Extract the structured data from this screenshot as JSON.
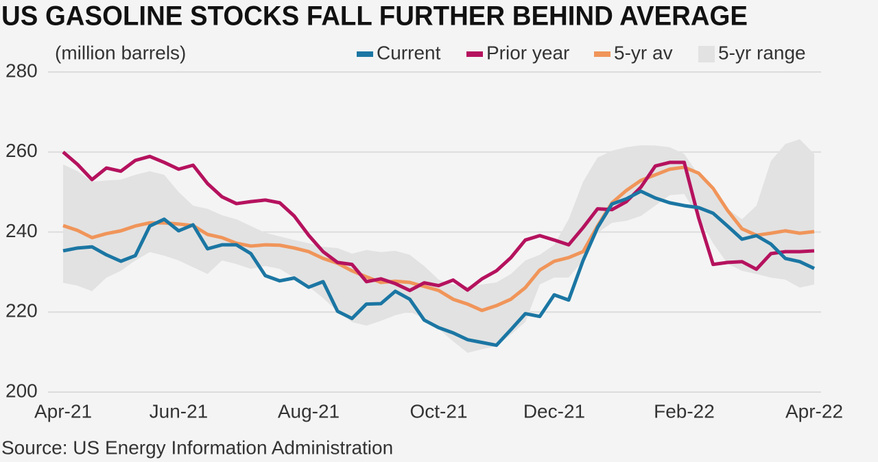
{
  "chart_data": {
    "type": "line",
    "title": "US GASOLINE STOCKS FALL FURTHER BEHIND AVERAGE",
    "y_label": "(million barrels)",
    "source": "Source: US Energy Information Administration",
    "categories": [
      "Apr-21",
      null,
      null,
      null,
      null,
      null,
      null,
      null,
      "Jun-21",
      null,
      null,
      null,
      null,
      null,
      null,
      null,
      null,
      "Aug-21",
      null,
      null,
      null,
      null,
      null,
      null,
      null,
      null,
      "Oct-21",
      null,
      null,
      null,
      null,
      null,
      null,
      null,
      "Dec-21",
      null,
      null,
      null,
      null,
      null,
      null,
      null,
      null,
      "Feb-22",
      null,
      null,
      null,
      null,
      null,
      null,
      null,
      null,
      "Apr-22"
    ],
    "ylim": [
      200,
      280
    ],
    "yticks": [
      200,
      220,
      240,
      260,
      280
    ],
    "grid": true,
    "range": {
      "name": "5-yr range",
      "color": "#e2e2e2",
      "upper": [
        256.9,
        255.2,
        252.6,
        252.9,
        253.1,
        254.3,
        255.2,
        254.3,
        250,
        246.6,
        245.8,
        244.2,
        243.2,
        241.5,
        239.8,
        238.9,
        238,
        237.2,
        236.3,
        236,
        234.6,
        235.5,
        235,
        235.3,
        234.3,
        231.5,
        228.1,
        226.9,
        226.4,
        226.9,
        227.4,
        229.5,
        232.9,
        234.3,
        236.8,
        243.2,
        252.6,
        258.6,
        260.3,
        261.2,
        261.7,
        261.6,
        261.2,
        259.5,
        254.3,
        250,
        245.8,
        243.2,
        246.6,
        257.7,
        262,
        263.2,
        259.5
      ],
      "lower": [
        227.3,
        226.6,
        225.2,
        228.6,
        230.3,
        232.9,
        235,
        234.1,
        232.9,
        231.2,
        229.5,
        232.9,
        232,
        230.8,
        231.5,
        230.8,
        228.6,
        226.4,
        223.5,
        220.1,
        217.5,
        216.6,
        217.8,
        219.2,
        220.1,
        218.4,
        215.8,
        212.7,
        209.8,
        210.7,
        211.5,
        214.4,
        217.5,
        226.9,
        228.6,
        228.6,
        232.9,
        239.8,
        242.3,
        242.8,
        244,
        246.6,
        249.2,
        249.5,
        243.5,
        237.2,
        232.1,
        230.3,
        229.5,
        228.6,
        228.1,
        226.1,
        226.9
      ]
    },
    "series": [
      {
        "name": "5-yr av",
        "color": "#f0955a",
        "values": [
          241.6,
          240.4,
          238.6,
          239.6,
          240.3,
          241.5,
          242.3,
          242.3,
          242,
          241.6,
          239.4,
          238.6,
          237.2,
          236.5,
          236.8,
          236.7,
          236,
          235.1,
          233.4,
          232.2,
          230.3,
          228.8,
          227.4,
          227.7,
          227.4,
          226.4,
          225.4,
          223.2,
          222,
          220.4,
          221.6,
          223.2,
          226.1,
          230.5,
          232.7,
          233.6,
          235.1,
          241.5,
          247.3,
          250.4,
          252.9,
          254.3,
          255.7,
          256.2,
          254.7,
          250.9,
          245.4,
          240.8,
          239.2,
          239.7,
          240.3,
          239.7,
          240.1
        ]
      },
      {
        "name": "Prior year",
        "color": "#b5125e",
        "values": [
          260,
          256.9,
          253.1,
          256,
          255.2,
          257.9,
          258.9,
          257.4,
          255.7,
          256.7,
          252.1,
          248.8,
          247.1,
          247.6,
          248,
          247.3,
          244,
          239.2,
          235.1,
          232.4,
          231.9,
          227.6,
          228.3,
          227.1,
          225.4,
          227.3,
          226.6,
          228,
          225.5,
          228.3,
          230.3,
          233.6,
          238,
          239.1,
          238,
          236.8,
          241.1,
          245.8,
          245.6,
          247.6,
          251.2,
          256.5,
          257.4,
          257.4,
          243.5,
          231.9,
          232.4,
          232.6,
          230.7,
          234.6,
          235.1,
          235.1,
          235.3
        ]
      },
      {
        "name": "Current",
        "color": "#1b76a3",
        "values": [
          235.3,
          236,
          236.3,
          234.3,
          232.7,
          234.1,
          241.5,
          243.2,
          240.3,
          241.8,
          235.8,
          236.8,
          236.8,
          234.6,
          229.1,
          227.8,
          228.5,
          226.2,
          227.6,
          220.2,
          218.4,
          222,
          222.1,
          225.2,
          223.2,
          218,
          216.1,
          214.8,
          213.1,
          212.4,
          211.7,
          215.6,
          219.6,
          218.9,
          224.3,
          223,
          232.9,
          241.1,
          247,
          248.3,
          250.2,
          248.5,
          247.3,
          246.6,
          246.1,
          244.7,
          241.5,
          238.2,
          239.1,
          237,
          233.4,
          232.6,
          230.9
        ]
      }
    ],
    "legend": [
      "chart_data.series.2",
      "chart_data.series.1",
      "chart_data.series.0",
      "chart_data.range"
    ]
  }
}
